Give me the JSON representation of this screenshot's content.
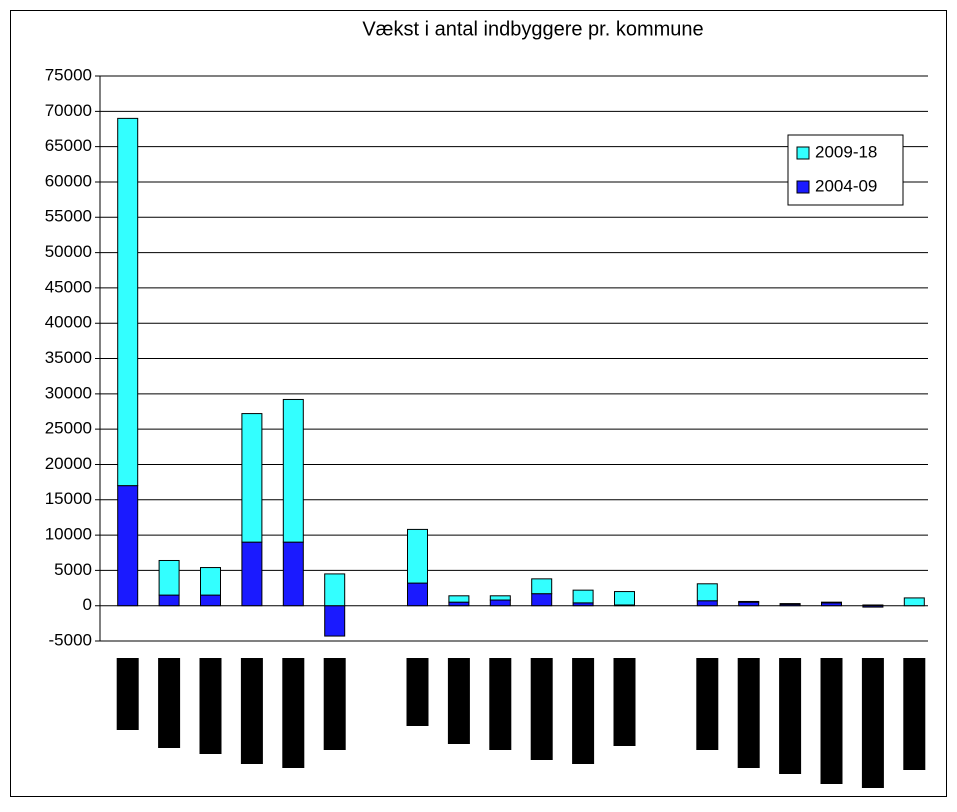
{
  "chart_data": {
    "type": "stacked-bar",
    "title": "Vækst i antal indbyggere pr. kommune",
    "categories": [
      null,
      null,
      null,
      null,
      null,
      null,
      null,
      null,
      null,
      null,
      null,
      null,
      null,
      null,
      null,
      null,
      null,
      null,
      null,
      null
    ],
    "series": [
      {
        "name": "2004-09",
        "color": "#1a1aff",
        "values": [
          17000,
          1500,
          1500,
          9000,
          9000,
          -4300,
          null,
          3200,
          500,
          800,
          1700,
          400,
          100,
          null,
          700,
          500,
          200,
          400,
          -200,
          0
        ]
      },
      {
        "name": "2009-18",
        "color": "#33ffff",
        "values": [
          52000,
          4900,
          3900,
          18200,
          20200,
          4500,
          null,
          7600,
          900,
          600,
          2100,
          1800,
          1900,
          null,
          2400,
          100,
          100,
          100,
          100,
          1100
        ]
      }
    ],
    "ylim": [
      -5000,
      75000
    ],
    "yticks": [
      -5000,
      0,
      5000,
      10000,
      15000,
      20000,
      25000,
      30000,
      35000,
      40000,
      45000,
      50000,
      55000,
      60000,
      65000,
      70000,
      75000
    ],
    "grid": true,
    "legend": "top-right"
  }
}
